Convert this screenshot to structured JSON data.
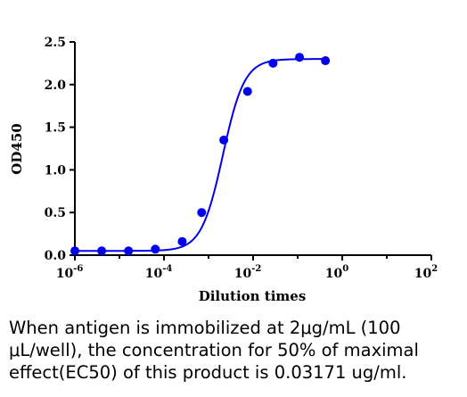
{
  "chart_data": {
    "type": "scatter",
    "ylabel": "OD450",
    "xlabel": "Dilution times",
    "xscale": "log",
    "xlim": [
      1e-06,
      100
    ],
    "ylim": [
      0,
      2.5
    ],
    "x_ticks": [
      {
        "base": "10",
        "exp": "-6"
      },
      {
        "base": "10",
        "exp": "-4"
      },
      {
        "base": "10",
        "exp": "-2"
      },
      {
        "base": "10",
        "exp": "0"
      },
      {
        "base": "10",
        "exp": "2"
      }
    ],
    "y_ticks": [
      "0.0",
      "0.5",
      "1.0",
      "1.5",
      "2.0",
      "2.5"
    ],
    "series": [
      {
        "color": "#0000ee",
        "points": [
          {
            "x": 1e-06,
            "y": 0.05
          },
          {
            "x": 4e-06,
            "y": 0.05
          },
          {
            "x": 1.6e-05,
            "y": 0.05
          },
          {
            "x": 6.4e-05,
            "y": 0.07
          },
          {
            "x": 0.000256,
            "y": 0.16
          },
          {
            "x": 0.0007,
            "y": 0.5
          },
          {
            "x": 0.0022,
            "y": 1.35
          },
          {
            "x": 0.0075,
            "y": 1.92
          },
          {
            "x": 0.028,
            "y": 2.25
          },
          {
            "x": 0.11,
            "y": 2.32
          },
          {
            "x": 0.42,
            "y": 2.28
          }
        ],
        "fit": {
          "model": "4PL",
          "bottom": 0.05,
          "top": 2.3,
          "ec50": 0.0021,
          "hill": 1.8
        }
      }
    ]
  },
  "caption": "When antigen is immobilized at 2μg/mL (100 μL/well), the concentration for 50% of maximal effect(EC50) of this product is 0.03171 ug/ml."
}
